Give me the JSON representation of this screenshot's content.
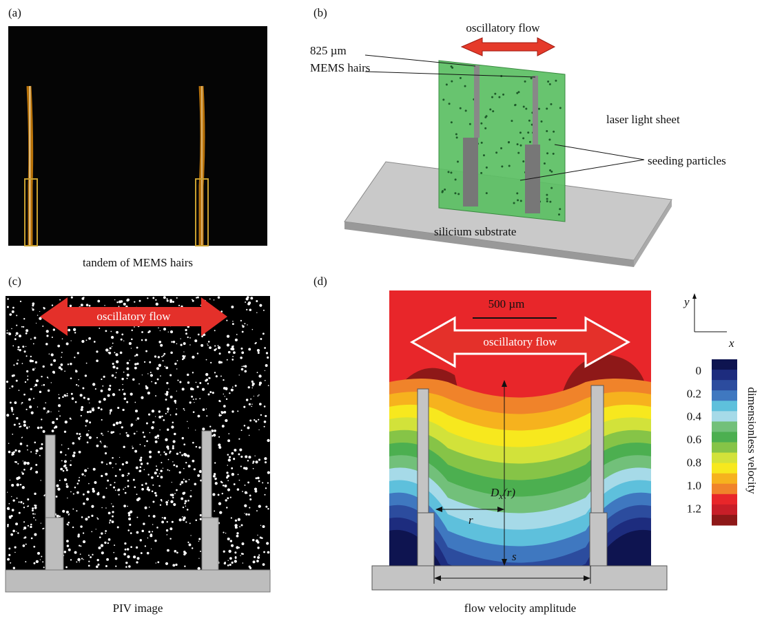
{
  "panels": {
    "a": {
      "label": "(a)",
      "caption": "tandem of MEMS hairs"
    },
    "b": {
      "label": "(b)",
      "flow": "oscillatory flow",
      "size": "825 µm",
      "hairs": "MEMS hairs",
      "sheet": "laser light sheet",
      "particles": "seeding particles",
      "substrate": "silicium substrate"
    },
    "c": {
      "label": "(c)",
      "flow": "oscillatory flow",
      "caption": "PIV image"
    },
    "d": {
      "label": "(d)",
      "scale": "500 µm",
      "flow": "oscillatory flow",
      "distance": "D",
      "distance_sub": "x",
      "distance_arg": "(r)",
      "r": "r",
      "s": "s",
      "axis_y": "y",
      "axis_x": "x",
      "caption": "flow velocity amplitude",
      "colorbar": {
        "label": "dimensionless velocity",
        "ticks": [
          "0",
          "0.2",
          "0.4",
          "0.6",
          "0.8",
          "1.0",
          "1.2"
        ],
        "colors": [
          "#0e1450",
          "#1d2c7e",
          "#2c4c9e",
          "#3f78c0",
          "#5ec0dc",
          "#a6dae8",
          "#72c07a",
          "#4caf50",
          "#86c447",
          "#d2e23a",
          "#f7e81e",
          "#f6b21e",
          "#f0832a",
          "#e8262a",
          "#c81e28",
          "#8e1818"
        ]
      }
    }
  }
}
